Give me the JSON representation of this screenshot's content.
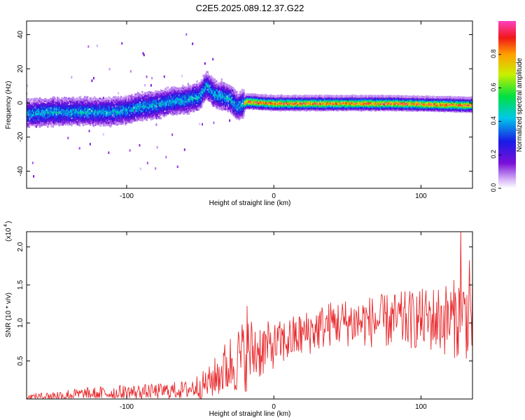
{
  "title": "C2E5.2025.089.12.37.G22",
  "colors": {
    "snr_line": "#e8282b",
    "background": "#ffffff",
    "axis": "#000000"
  },
  "chart_data": [
    {
      "type": "heatmap",
      "xlabel": "Height of straight line (km)",
      "ylabel": "Frequency (Hz)",
      "xlim": [
        -168,
        135
      ],
      "ylim": [
        -50,
        48
      ],
      "x_ticks": [
        -100,
        0,
        100
      ],
      "y_ticks": [
        -40,
        -20,
        0,
        20,
        40
      ],
      "colorbar": {
        "label": "Normalized spectral amplitude",
        "range": [
          0.0,
          1.0
        ],
        "ticks": [
          "0.0",
          "0.2",
          "0.4",
          "0.6",
          "0.8"
        ],
        "colormap": "rainbow"
      },
      "ridge_center_frequency_hz": [
        [
          -165,
          -6
        ],
        [
          -150,
          -5
        ],
        [
          -130,
          -5
        ],
        [
          -110,
          -5
        ],
        [
          -100,
          -4
        ],
        [
          -90,
          -2
        ],
        [
          -80,
          -1
        ],
        [
          -70,
          1
        ],
        [
          -60,
          2
        ],
        [
          -50,
          4
        ],
        [
          -47,
          9
        ],
        [
          -45,
          10
        ],
        [
          -40,
          5
        ],
        [
          -30,
          3
        ],
        [
          -25,
          -2
        ],
        [
          -20,
          0
        ],
        [
          -18,
          1
        ],
        [
          0,
          0
        ],
        [
          40,
          0
        ],
        [
          80,
          0
        ],
        [
          135,
          -1
        ]
      ],
      "peak_amplitude_by_region": [
        {
          "x_range": [
            -168,
            -20
          ],
          "amplitude": 0.45
        },
        {
          "x_range": [
            -20,
            135
          ],
          "amplitude": 0.95
        }
      ],
      "grid": false
    },
    {
      "type": "line",
      "xlabel": "Height of straight line (km)",
      "ylabel": "SNR (10 * v/v)",
      "y_multiplier_label": "(x10",
      "y_multiplier_exp": "4",
      "xlim": [
        -168,
        135
      ],
      "ylim": [
        0,
        2.2
      ],
      "x_ticks": [
        -100,
        0,
        100
      ],
      "y_ticks": [
        0.5,
        1.0,
        1.5,
        2.0
      ],
      "y_tick_labels": [
        "0.5",
        "1.0",
        "1.5",
        "2.0"
      ],
      "envelope": [
        {
          "x": -168,
          "base": 0.02,
          "spread": 0.04
        },
        {
          "x": -140,
          "base": 0.05,
          "spread": 0.08
        },
        {
          "x": -110,
          "base": 0.08,
          "spread": 0.1
        },
        {
          "x": -80,
          "base": 0.1,
          "spread": 0.1
        },
        {
          "x": -60,
          "base": 0.12,
          "spread": 0.12
        },
        {
          "x": -45,
          "base": 0.2,
          "spread": 0.2
        },
        {
          "x": -30,
          "base": 0.45,
          "spread": 0.4
        },
        {
          "x": -18,
          "base": 0.6,
          "spread": 0.5
        },
        {
          "x": -10,
          "base": 0.65,
          "spread": 0.4
        },
        {
          "x": 0,
          "base": 0.7,
          "spread": 0.3
        },
        {
          "x": 20,
          "base": 0.85,
          "spread": 0.3
        },
        {
          "x": 40,
          "base": 1.0,
          "spread": 0.3
        },
        {
          "x": 70,
          "base": 1.02,
          "spread": 0.35
        },
        {
          "x": 100,
          "base": 1.05,
          "spread": 0.4
        },
        {
          "x": 120,
          "base": 1.05,
          "spread": 0.5
        },
        {
          "x": 135,
          "base": 1.1,
          "spread": 0.6
        }
      ],
      "notable_peaks": [
        {
          "x": 127,
          "y": 2.22
        },
        {
          "x": 133,
          "y": 1.82
        },
        {
          "x": -18,
          "y": 1.22
        }
      ],
      "grid": false
    }
  ]
}
